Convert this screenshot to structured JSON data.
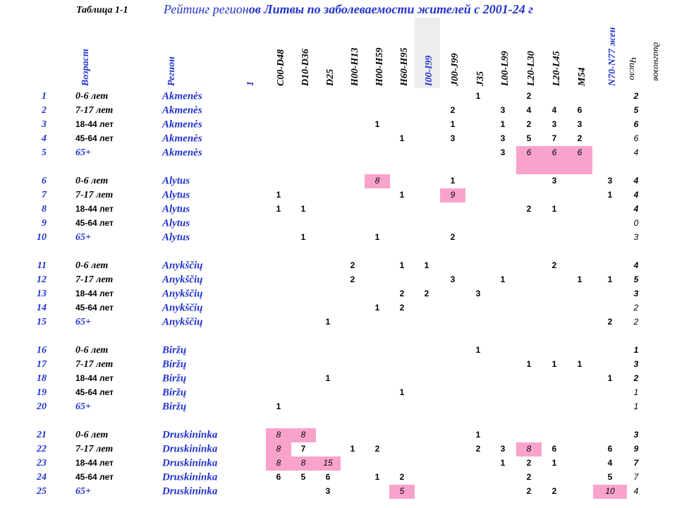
{
  "header": {
    "table_label": "Таблица 1-1",
    "title_a": "Рейтинг регион",
    "title_b": "ов Литвы по заболеваемости жителей с 2001-24 г"
  },
  "columns": {
    "age": "Возраст",
    "region": "Регион",
    "extra": "1",
    "codes": [
      "C00-D48",
      "D10-D36",
      "D25",
      "H00-H13",
      "H00-H59",
      "H60-H95",
      "I00-I99",
      "J00-J99",
      "J35",
      "L00-L99",
      "L20-L30",
      "L20-L45",
      "M54",
      "N70-N77 жен"
    ],
    "count_a": "Число",
    "count_b": "диагнозов"
  },
  "highlight_color": "#f9a3cc",
  "rows": [
    {
      "num": "1",
      "age": "0-6 лет",
      "region": "Akmenės",
      "cells": [
        null,
        null,
        null,
        null,
        null,
        null,
        null,
        null,
        "1",
        null,
        "2",
        null,
        null,
        null
      ],
      "count": "2"
    },
    {
      "num": "2",
      "age": "7-17 лет",
      "region": "Akmenės",
      "cells": [
        null,
        null,
        null,
        null,
        null,
        null,
        null,
        "2",
        null,
        "3",
        "4",
        "4",
        "6",
        null
      ],
      "count": "5"
    },
    {
      "num": "3",
      "age": "18-44 лет",
      "region": "Akmenės",
      "cells": [
        null,
        null,
        null,
        null,
        "1",
        null,
        null,
        "1",
        null,
        "1",
        "2",
        "3",
        "3",
        null
      ],
      "count": "6"
    },
    {
      "num": "4",
      "age": "45-64 лет",
      "region": "Akmenės",
      "cells": [
        null,
        null,
        null,
        null,
        null,
        "1",
        null,
        "3",
        null,
        "3",
        "5",
        "7",
        "2",
        null
      ],
      "count": "6"
    },
    {
      "num": "5",
      "age": "65+",
      "region": "Akmenės",
      "cells": [
        null,
        null,
        null,
        null,
        null,
        null,
        null,
        null,
        null,
        "3",
        "6",
        "6",
        "6",
        null
      ],
      "count": "4",
      "highlight": [
        10,
        11,
        12
      ]
    },
    {
      "num": "6",
      "age": "0-6 лет",
      "region": "Alytus",
      "cells": [
        null,
        null,
        null,
        null,
        "8",
        null,
        null,
        "1",
        null,
        null,
        null,
        "3",
        null,
        "3"
      ],
      "count": "4",
      "highlight": [
        4
      ]
    },
    {
      "num": "7",
      "age": "7-17 лет",
      "region": "Alytus",
      "cells": [
        "1",
        null,
        null,
        null,
        null,
        "1",
        null,
        "9",
        null,
        null,
        null,
        null,
        null,
        "1"
      ],
      "count": "4",
      "highlight": [
        7
      ]
    },
    {
      "num": "8",
      "age": "18-44 лет",
      "region": "Alytus",
      "cells": [
        "1",
        "1",
        null,
        null,
        null,
        null,
        null,
        null,
        null,
        null,
        "2",
        "1",
        null,
        null
      ],
      "count": "4"
    },
    {
      "num": "9",
      "age": "45-64 лет",
      "region": "Alytus",
      "cells": [
        null,
        null,
        null,
        null,
        null,
        null,
        null,
        null,
        null,
        null,
        null,
        null,
        null,
        null
      ],
      "count": "0"
    },
    {
      "num": "10",
      "age": "65+",
      "region": "Alytus",
      "cells": [
        null,
        "1",
        null,
        null,
        "1",
        null,
        null,
        "2",
        null,
        null,
        null,
        null,
        null,
        null
      ],
      "count": "3"
    },
    {
      "num": "11",
      "age": "0-6 лет",
      "region": "Anykščių",
      "cells": [
        null,
        null,
        null,
        "2",
        null,
        "1",
        "1",
        null,
        null,
        null,
        null,
        "2",
        null,
        null
      ],
      "count": "4"
    },
    {
      "num": "12",
      "age": "7-17 лет",
      "region": "Anykščių",
      "cells": [
        null,
        null,
        null,
        "2",
        null,
        null,
        null,
        "3",
        null,
        "1",
        null,
        null,
        "1",
        "1"
      ],
      "count": "5"
    },
    {
      "num": "13",
      "age": "18-44 лет",
      "region": "Anykščių",
      "cells": [
        null,
        null,
        null,
        null,
        null,
        "2",
        "2",
        null,
        "3",
        null,
        null,
        null,
        null,
        null
      ],
      "count": "3"
    },
    {
      "num": "14",
      "age": "45-64 лет",
      "region": "Anykščių",
      "cells": [
        null,
        null,
        null,
        null,
        "1",
        "2",
        null,
        null,
        null,
        null,
        null,
        null,
        null,
        null
      ],
      "count": "2"
    },
    {
      "num": "15",
      "age": "65+",
      "region": "Anykščių",
      "cells": [
        null,
        null,
        "1",
        null,
        null,
        null,
        null,
        null,
        null,
        null,
        null,
        null,
        null,
        "2"
      ],
      "count": "2"
    },
    {
      "num": "16",
      "age": "0-6 лет",
      "region": "Biržų",
      "cells": [
        null,
        null,
        null,
        null,
        null,
        null,
        null,
        null,
        "1",
        null,
        null,
        null,
        null,
        null
      ],
      "count": "1"
    },
    {
      "num": "17",
      "age": "7-17 лет",
      "region": "Biržų",
      "cells": [
        null,
        null,
        null,
        null,
        null,
        null,
        null,
        null,
        null,
        null,
        "1",
        "1",
        "1",
        null
      ],
      "count": "3"
    },
    {
      "num": "18",
      "age": "18-44 лет",
      "region": "Biržų",
      "cells": [
        null,
        null,
        "1",
        null,
        null,
        null,
        null,
        null,
        null,
        null,
        null,
        null,
        null,
        "1"
      ],
      "count": "2"
    },
    {
      "num": "19",
      "age": "45-64 лет",
      "region": "Biržų",
      "cells": [
        null,
        null,
        null,
        null,
        null,
        "1",
        null,
        null,
        null,
        null,
        null,
        null,
        null,
        null
      ],
      "count": "1"
    },
    {
      "num": "20",
      "age": "65+",
      "region": "Biržų",
      "cells": [
        "1",
        null,
        null,
        null,
        null,
        null,
        null,
        null,
        null,
        null,
        null,
        null,
        null,
        null
      ],
      "count": "1"
    },
    {
      "num": "21",
      "age": "0-6 лет",
      "region": "Druskininka",
      "cells": [
        "8",
        "8",
        null,
        null,
        null,
        null,
        null,
        null,
        "1",
        null,
        null,
        null,
        null,
        null
      ],
      "count": "3",
      "highlight": [
        0,
        1
      ]
    },
    {
      "num": "22",
      "age": "7-17 лет",
      "region": "Druskininka",
      "cells": [
        "8",
        "7",
        null,
        "1",
        "2",
        null,
        null,
        null,
        "2",
        "3",
        "8",
        "6",
        null,
        "6"
      ],
      "count": "9",
      "highlight": [
        0,
        10
      ]
    },
    {
      "num": "23",
      "age": "18-44 лет",
      "region": "Druskininka",
      "cells": [
        "8",
        "8",
        "15",
        null,
        null,
        null,
        null,
        null,
        null,
        "1",
        "2",
        "1",
        null,
        "4"
      ],
      "count": "7",
      "highlight": [
        0,
        1,
        2
      ]
    },
    {
      "num": "24",
      "age": "45-64 лет",
      "region": "Druskininka",
      "cells": [
        "6",
        "5",
        "6",
        null,
        "1",
        "2",
        null,
        null,
        null,
        null,
        "2",
        null,
        null,
        "5"
      ],
      "count": "7"
    },
    {
      "num": "25",
      "age": "65+",
      "region": "Druskininka",
      "cells": [
        null,
        null,
        "3",
        null,
        null,
        "5",
        null,
        null,
        null,
        null,
        "2",
        "2",
        null,
        "10"
      ],
      "count": "4",
      "highlight": [
        5,
        13
      ]
    }
  ]
}
